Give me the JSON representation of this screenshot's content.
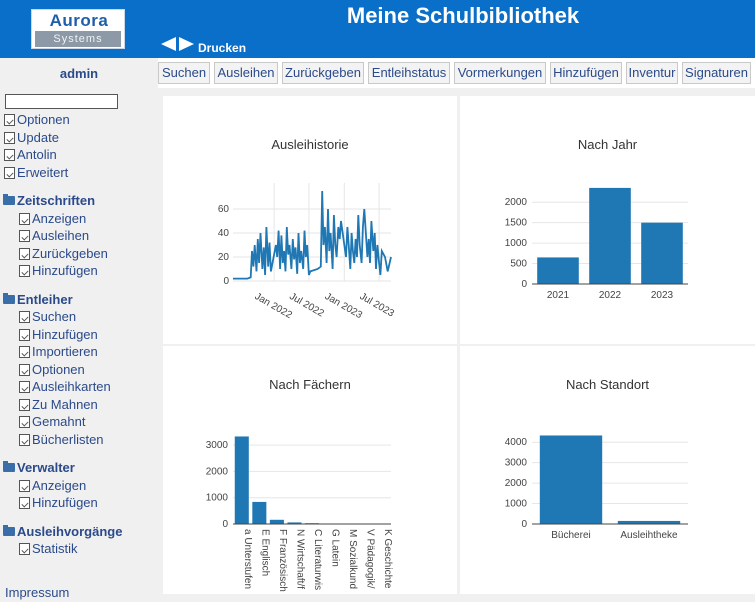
{
  "header": {
    "logo_line1": "Aurora",
    "logo_line2": "Systems",
    "title": "Meine Schulbibliothek",
    "print_label": "Drucken"
  },
  "sidebar": {
    "user": "admin",
    "search_value": "",
    "top_items": [
      "Optionen",
      "Update",
      "Antolin",
      "Erweitert"
    ],
    "groups": [
      {
        "title": "Zeitschriften",
        "items": [
          "Anzeigen",
          "Ausleihen",
          "Zurückgeben",
          "Hinzufügen"
        ]
      },
      {
        "title": "Entleiher",
        "items": [
          "Suchen",
          "Hinzufügen",
          "Importieren",
          "Optionen",
          "Ausleihkarten",
          "Zu Mahnen",
          "Gemahnt",
          "Bücherlisten"
        ]
      },
      {
        "title": "Verwalter",
        "items": [
          "Anzeigen",
          "Hinzufügen"
        ]
      },
      {
        "title": "Ausleihvorgänge",
        "items": [
          "Statistik"
        ]
      }
    ],
    "footer_link": "Impressum"
  },
  "toolbar": {
    "buttons": [
      "Suchen",
      "Ausleihen",
      "Zurückgeben",
      "Entleihstatus",
      "Vormerkungen",
      "Hinzufügen",
      "Inventur",
      "Signaturen"
    ]
  },
  "colors": {
    "header": "#0a6fc8",
    "link": "#2b4a8a",
    "bar": "#1f77b4"
  },
  "chart_data": [
    {
      "type": "line",
      "title": "Ausleihistorie",
      "x_ticks": [
        "Jan 2022",
        "Jul 2022",
        "Jan 2023",
        "Jul 2023"
      ],
      "y_ticks": [
        0,
        20,
        40,
        60
      ],
      "ylim": [
        0,
        75
      ],
      "x": [
        "2021-06-01",
        "2021-06-15",
        "2021-07-01",
        "2021-07-15",
        "2021-08-01",
        "2021-08-15",
        "2021-09-01",
        "2021-09-08",
        "2021-09-15",
        "2021-09-22",
        "2021-10-01",
        "2021-10-08",
        "2021-10-15",
        "2021-10-22",
        "2021-11-01",
        "2021-11-08",
        "2021-11-15",
        "2021-11-22",
        "2021-12-01",
        "2021-12-08",
        "2021-12-15",
        "2022-01-10",
        "2022-01-17",
        "2022-01-24",
        "2022-02-01",
        "2022-02-08",
        "2022-02-15",
        "2022-02-22",
        "2022-03-01",
        "2022-03-08",
        "2022-03-15",
        "2022-03-22",
        "2022-04-01",
        "2022-04-08",
        "2022-04-15",
        "2022-04-22",
        "2022-05-01",
        "2022-05-08",
        "2022-05-15",
        "2022-05-22",
        "2022-06-01",
        "2022-06-08",
        "2022-06-15",
        "2022-06-22",
        "2022-07-01",
        "2022-07-08",
        "2022-08-15",
        "2022-09-01",
        "2022-09-08",
        "2022-09-15",
        "2022-09-22",
        "2022-10-01",
        "2022-10-08",
        "2022-10-15",
        "2022-10-22",
        "2022-11-01",
        "2022-11-08",
        "2022-11-15",
        "2022-11-22",
        "2022-12-01",
        "2022-12-08",
        "2022-12-15",
        "2023-01-10",
        "2023-01-17",
        "2023-01-24",
        "2023-02-01",
        "2023-02-08",
        "2023-02-15",
        "2023-02-22",
        "2023-03-01",
        "2023-03-08",
        "2023-03-15",
        "2023-03-22",
        "2023-04-01",
        "2023-04-08",
        "2023-04-15",
        "2023-05-01",
        "2023-05-08",
        "2023-05-15",
        "2023-05-22",
        "2023-06-01",
        "2023-06-08",
        "2023-06-15",
        "2023-06-22",
        "2023-07-01",
        "2023-07-08",
        "2023-07-15",
        "2023-08-01",
        "2023-08-15",
        "2023-09-01"
      ],
      "y": [
        2,
        2,
        2,
        2,
        2,
        2,
        3,
        25,
        12,
        30,
        8,
        35,
        15,
        40,
        10,
        28,
        5,
        45,
        12,
        32,
        8,
        30,
        20,
        42,
        10,
        38,
        15,
        25,
        8,
        45,
        22,
        30,
        10,
        35,
        18,
        28,
        6,
        40,
        15,
        25,
        10,
        42,
        20,
        30,
        5,
        8,
        10,
        12,
        75,
        30,
        45,
        15,
        60,
        25,
        40,
        10,
        55,
        30,
        20,
        45,
        35,
        50,
        20,
        45,
        30,
        10,
        40,
        25,
        15,
        35,
        20,
        55,
        30,
        15,
        45,
        60,
        20,
        35,
        15,
        50,
        25,
        40,
        10,
        30,
        15,
        5,
        25,
        20,
        8,
        20
      ]
    },
    {
      "type": "bar",
      "title": "Nach Jahr",
      "categories": [
        "2021",
        "2022",
        "2023"
      ],
      "values": [
        650,
        2350,
        1500
      ],
      "y_ticks": [
        0,
        500,
        1000,
        1500,
        2000
      ],
      "ylim": [
        0,
        2470
      ]
    },
    {
      "type": "bar",
      "title": "Nach Fächern",
      "categories": [
        "a Unterstufen",
        "E Englisch",
        "F Französisch",
        "N Wirtschaft/f",
        "C Literaturwis",
        "G Latein",
        "M Sozialkund",
        "V Pädagogik/",
        "K Geschichte"
      ],
      "values": [
        3330,
        840,
        160,
        60,
        30,
        12,
        8,
        5,
        4
      ],
      "y_ticks": [
        0,
        1000,
        2000,
        3000
      ],
      "ylim": [
        0,
        3500
      ]
    },
    {
      "type": "bar",
      "title": "Nach Standort",
      "categories": [
        "Bücherei",
        "Ausleihtheke"
      ],
      "values": [
        4330,
        150
      ],
      "y_ticks": [
        0,
        1000,
        2000,
        3000,
        4000
      ],
      "ylim": [
        0,
        4500
      ]
    }
  ]
}
